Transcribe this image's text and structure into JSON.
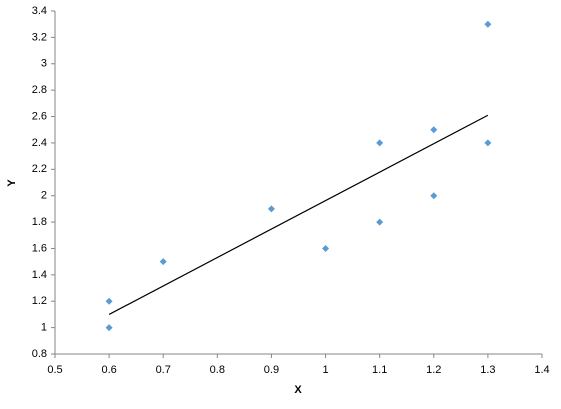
{
  "chart_data": {
    "type": "scatter",
    "x_label": "X",
    "y_label": "Y",
    "x": [
      0.6,
      0.6,
      0.7,
      0.9,
      1.0,
      1.1,
      1.1,
      1.2,
      1.2,
      1.3,
      1.3
    ],
    "values": [
      1.2,
      1.0,
      1.5,
      1.9,
      1.6,
      2.4,
      1.8,
      2.5,
      2.0,
      3.3,
      2.4
    ],
    "color": "#5b9bd5",
    "trendline": {
      "x": [
        0.6,
        1.3
      ],
      "values": [
        1.1,
        2.61
      ],
      "color": "#000000"
    },
    "xlim": [
      0.5,
      1.4
    ],
    "xticks": [
      0.5,
      0.6,
      0.7,
      0.8,
      0.9,
      1,
      1.1,
      1.2,
      1.3,
      1.4
    ],
    "ylim": [
      0.8,
      3.4
    ],
    "yticks": [
      0.8,
      1,
      1.2,
      1.4,
      1.6,
      1.8,
      2,
      2.2,
      2.4,
      2.6,
      2.8,
      3,
      3.2,
      3.4
    ],
    "grid": false
  }
}
